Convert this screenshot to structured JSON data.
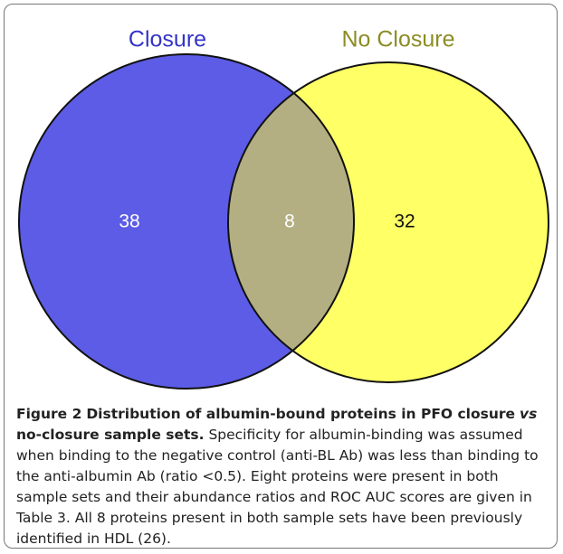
{
  "diagram": {
    "sets": [
      {
        "label": "Closure",
        "count": "38"
      },
      {
        "label": "No Closure",
        "count": "32"
      }
    ],
    "overlap_count": "8"
  },
  "caption": {
    "figure_label": "Figure 2",
    "title_start": "Distribution of albumin-bound proteins in PFO closure",
    "title_italic": "vs",
    "title_end": "no-closure sample sets.",
    "body": "Specificity for albumin-binding was assumed when binding to the negative control (anti-BL Ab) was less than binding to the anti-albumin Ab (ratio <0.5). Eight proteins were present in both sample sets and their abundance ratios and ROC AUC scores are given in Table 3. All 8 proteins present in both sample sets have been previously identified in HDL (26)."
  }
}
